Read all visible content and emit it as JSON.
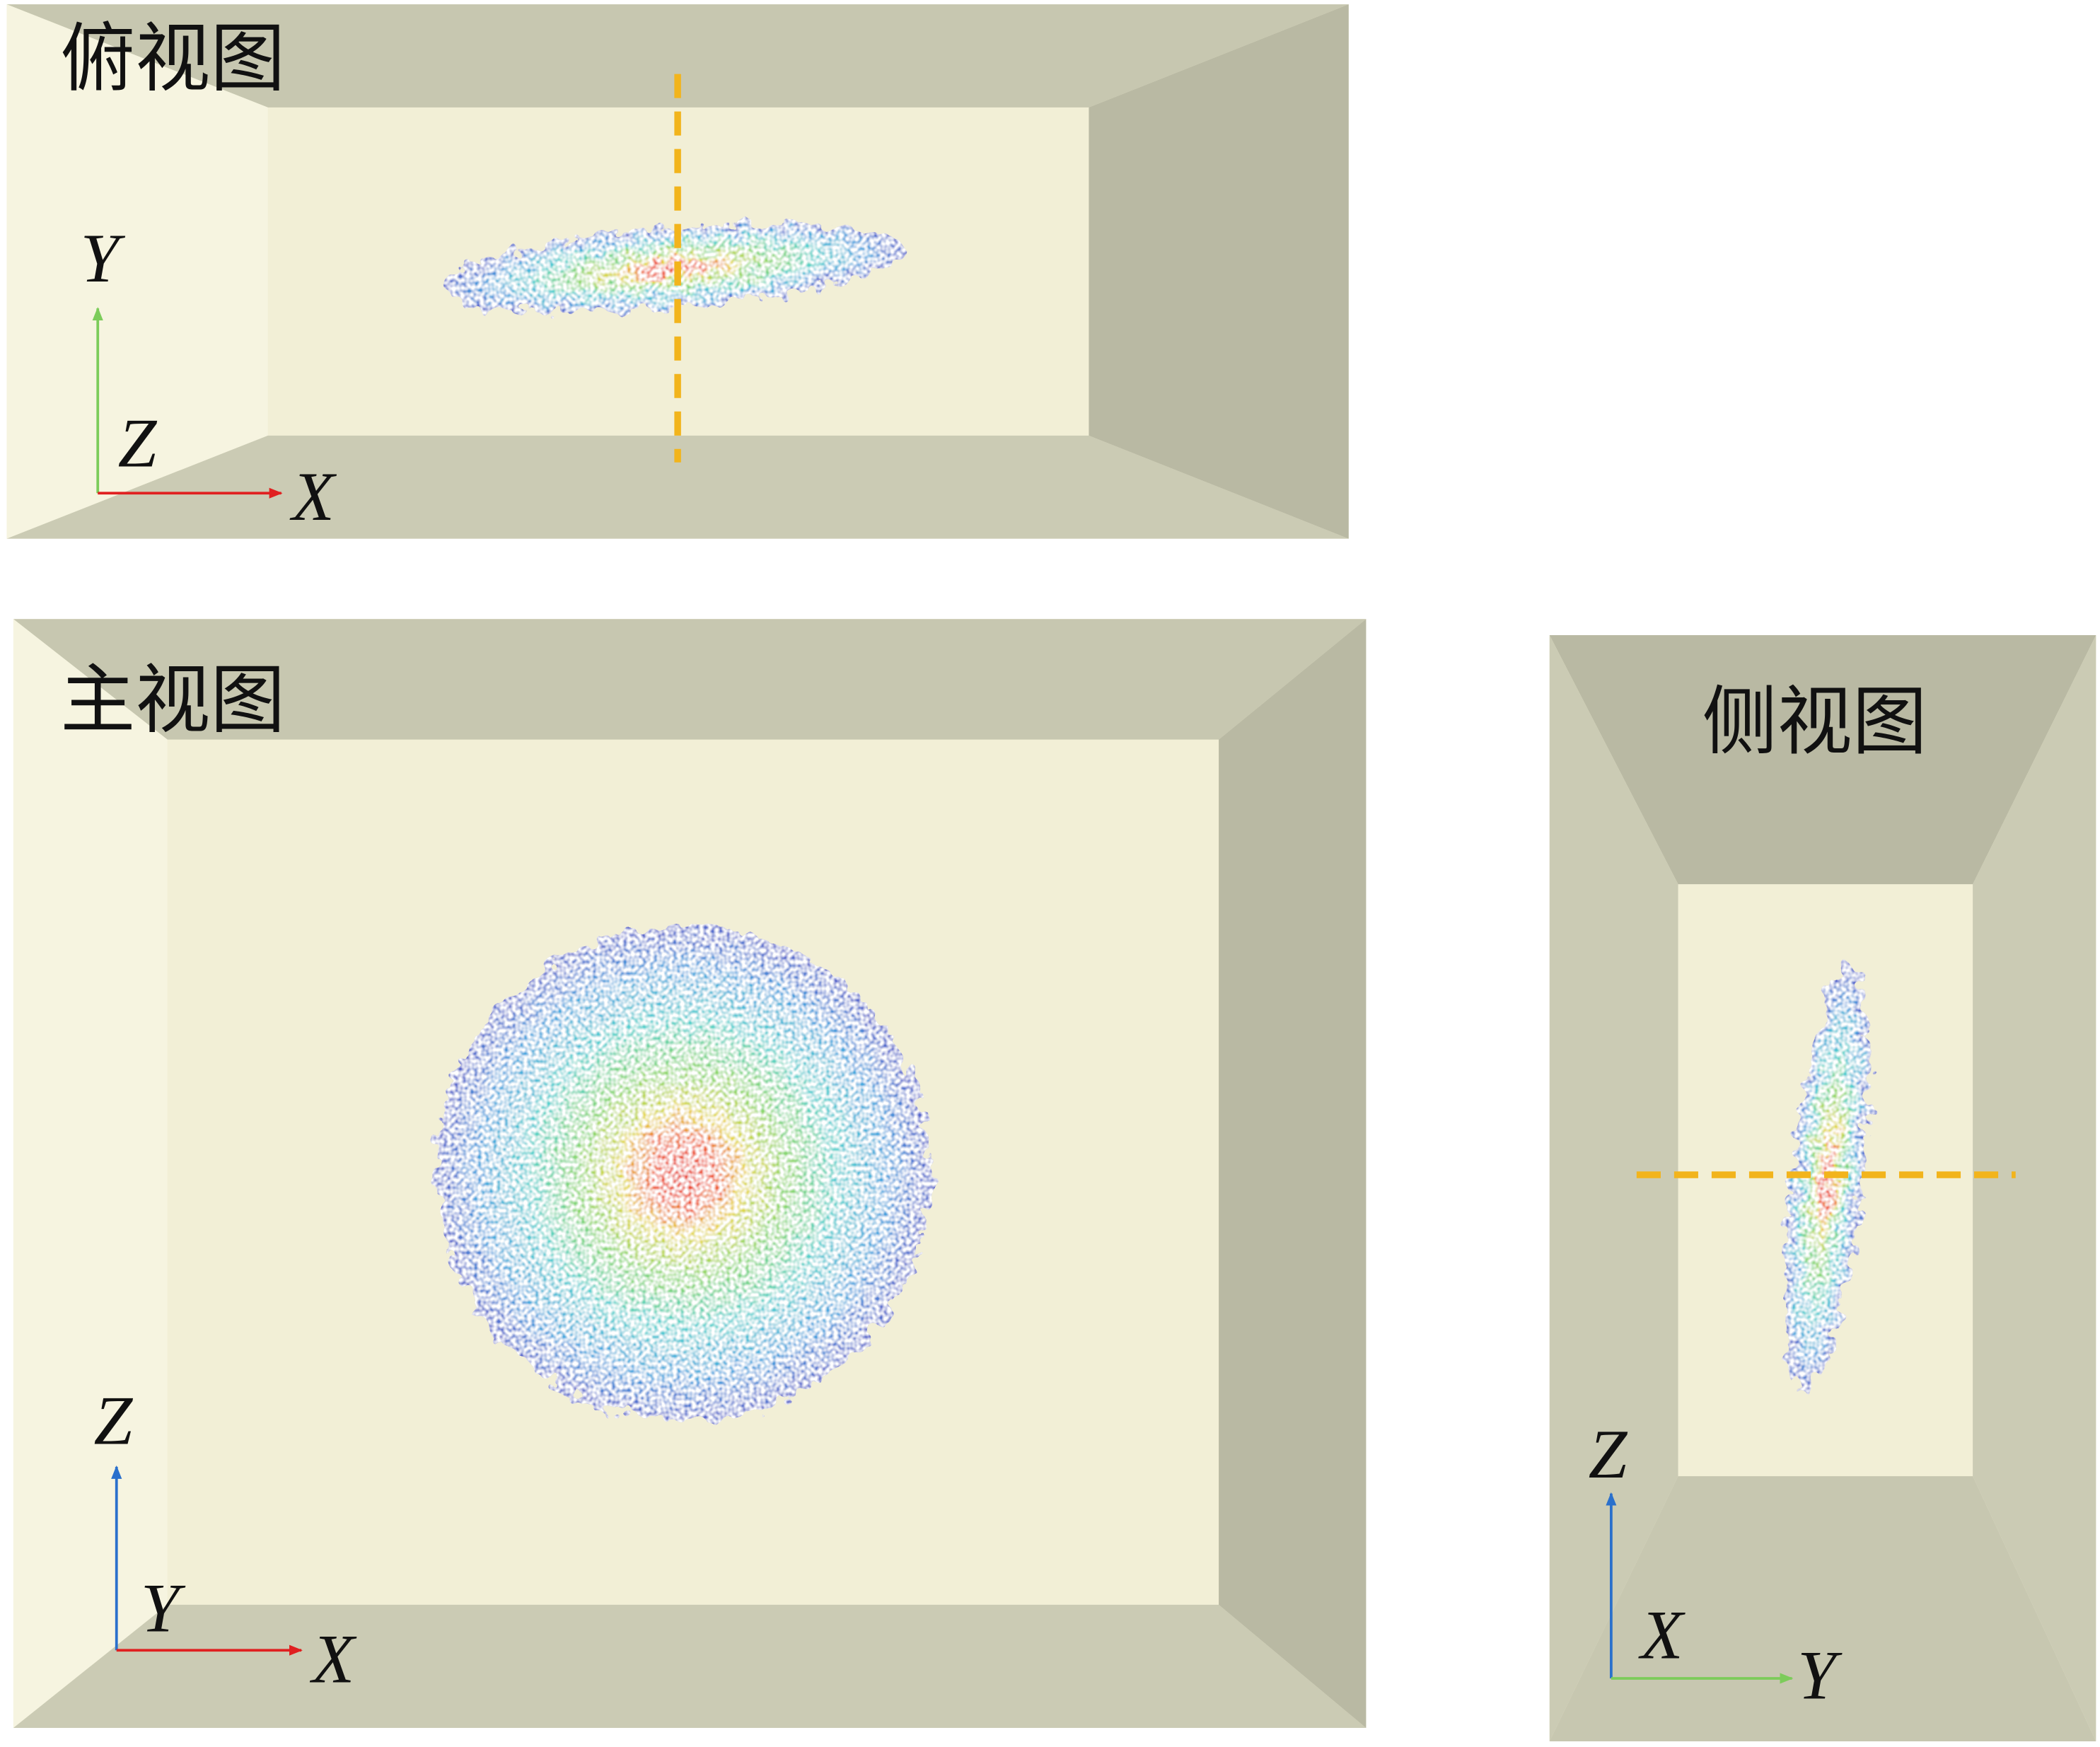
{
  "panels": [
    {
      "title": "俯视图",
      "axis_labels": [
        "Y",
        "Z",
        "X"
      ]
    },
    {
      "title": "主视图",
      "axis_labels": [
        "Z",
        "Y",
        "X"
      ]
    },
    {
      "title": "侧视图",
      "axis_labels": [
        "Z",
        "X",
        "Y"
      ]
    }
  ]
}
